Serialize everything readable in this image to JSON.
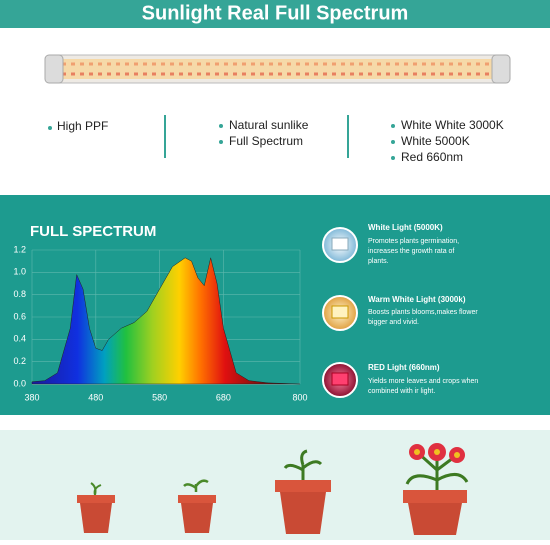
{
  "header": {
    "title": "Sunlight Real Full Spectrum"
  },
  "features": [
    [
      "High PPF"
    ],
    [
      "Natural sunlike",
      "Full Spectrum"
    ],
    [
      "White White 3000K",
      "White 5000K",
      "Red 660nm"
    ]
  ],
  "chart_data": {
    "type": "area",
    "title": "FULL SPECTRUM",
    "x": [
      380,
      400,
      420,
      440,
      450,
      460,
      470,
      480,
      490,
      500,
      520,
      540,
      560,
      580,
      600,
      620,
      630,
      640,
      650,
      660,
      670,
      680,
      700,
      720,
      750,
      800
    ],
    "values": [
      0.02,
      0.03,
      0.1,
      0.5,
      0.98,
      0.85,
      0.5,
      0.32,
      0.3,
      0.4,
      0.5,
      0.55,
      0.65,
      0.85,
      1.05,
      1.13,
      1.1,
      0.95,
      0.88,
      1.13,
      0.9,
      0.5,
      0.1,
      0.03,
      0.01,
      0
    ],
    "xlim": [
      380,
      800
    ],
    "xticks": [
      380,
      480,
      580,
      680,
      800
    ],
    "ylim": [
      0,
      1.2
    ],
    "yticks": [
      {
        "value": 0,
        "label": "0.0"
      },
      0.2,
      0.4,
      0.6,
      0.8,
      {
        "value": 1,
        "label": "1.0"
      },
      1.2
    ],
    "grid": true
  },
  "lights": [
    {
      "title": "White Light (5000K)",
      "lines": [
        "Promotes plants germination,",
        "increases the growth rata of",
        "plants."
      ]
    },
    {
      "title": "Warm White Light  (3000k)",
      "lines": [
        "Boosts plants blooms,makes flower",
        "bigger and vivid."
      ]
    },
    {
      "title": "RED Light (660nm)",
      "lines": [
        "Yields more leaves and crops when",
        "combined  with ir light."
      ]
    }
  ]
}
